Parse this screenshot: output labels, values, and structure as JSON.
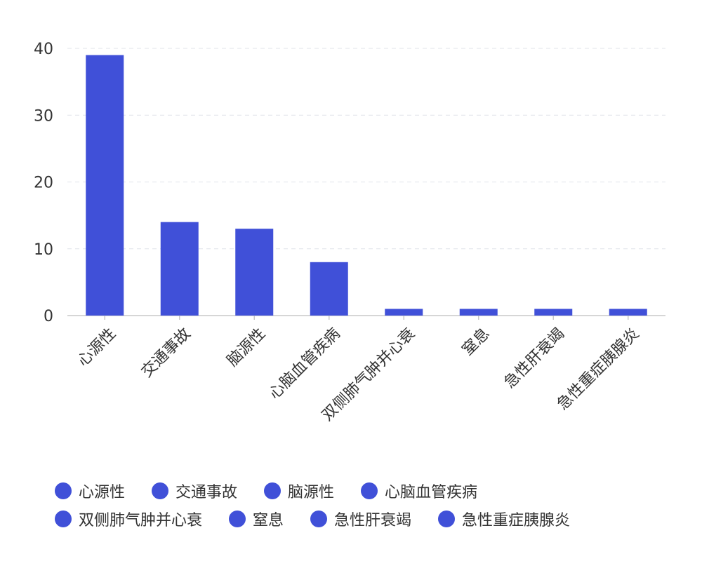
{
  "chart_data": {
    "type": "bar",
    "categories": [
      "心源性",
      "交通事故",
      "脑源性",
      "心脑血管疾病",
      "双侧肺气肿并心衰",
      "窒息",
      "急性肝衰竭",
      "急性重症胰腺炎"
    ],
    "values": [
      39,
      14,
      13,
      8,
      1,
      1,
      1,
      1
    ],
    "ylim": [
      0,
      40
    ],
    "yticks": [
      0,
      10,
      20,
      30,
      40
    ],
    "grid": true,
    "legend_position": "bottom",
    "bar_color": "#4050d8"
  },
  "legend": {
    "rows": [
      [
        "心源性",
        "交通事故",
        "脑源性",
        "心脑血管疾病"
      ],
      [
        "双侧肺气肿并心衰",
        "窒息",
        "急性肝衰竭",
        "急性重症胰腺炎"
      ]
    ]
  }
}
